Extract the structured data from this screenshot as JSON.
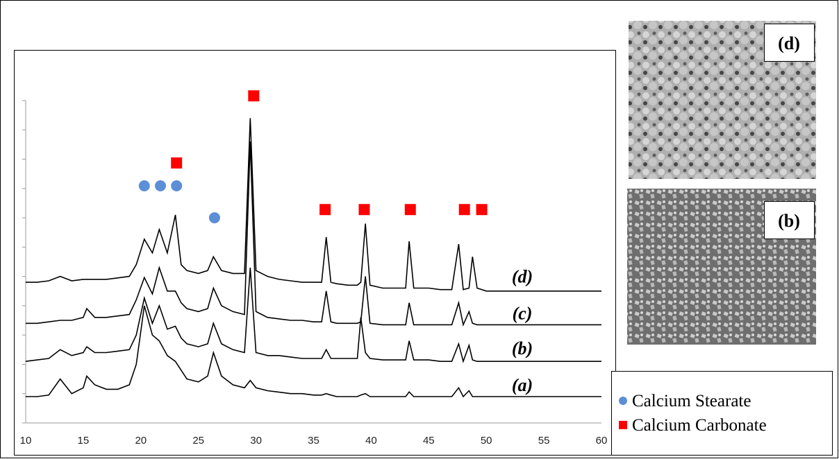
{
  "chart_data": {
    "type": "line",
    "xlim": [
      10,
      60
    ],
    "xticks": [
      10,
      15,
      20,
      25,
      30,
      35,
      40,
      45,
      50,
      55,
      60
    ],
    "ylim": [
      0,
      11
    ],
    "yticks": [
      0,
      1,
      2,
      3,
      4,
      5,
      6,
      7,
      8,
      9,
      10,
      11
    ],
    "x": [
      10,
      11,
      12,
      13,
      14,
      15,
      15.3,
      16,
      17,
      18,
      19,
      19.6,
      20.3,
      21,
      21.6,
      22.3,
      23,
      23.5,
      24,
      25,
      25.8,
      26.3,
      27,
      28,
      29,
      29.5,
      30,
      31,
      32,
      33,
      34,
      35,
      35.7,
      36.1,
      36.5,
      37,
      38,
      38.8,
      39.1,
      39.5,
      39.9,
      41,
      42,
      43,
      43.3,
      43.7,
      45,
      46,
      47,
      47.6,
      48,
      48.5,
      48.8,
      49.2,
      50,
      52,
      54,
      56,
      58,
      60
    ],
    "series": [
      {
        "name": "(a)",
        "color": "#000000",
        "values": [
          0.9,
          0.9,
          0.95,
          1.5,
          1.0,
          1.2,
          1.6,
          1.3,
          1.15,
          1.15,
          1.3,
          2.0,
          4.0,
          3.0,
          2.8,
          2.3,
          2.1,
          1.8,
          1.5,
          1.4,
          1.6,
          2.4,
          1.6,
          1.3,
          1.2,
          1.45,
          1.2,
          1.1,
          1.05,
          1.0,
          1.0,
          0.95,
          0.95,
          1.0,
          0.95,
          0.9,
          0.9,
          0.9,
          0.95,
          1.0,
          0.9,
          0.9,
          0.9,
          0.9,
          1.06,
          0.9,
          0.9,
          0.9,
          0.9,
          1.2,
          0.9,
          1.1,
          0.9,
          0.9,
          0.9,
          0.9,
          0.9,
          0.9,
          0.9,
          0.9
        ]
      },
      {
        "name": "(b)",
        "color": "#000000",
        "values": [
          2.1,
          2.15,
          2.2,
          2.5,
          2.3,
          2.4,
          2.6,
          2.4,
          2.4,
          2.45,
          2.5,
          3.0,
          4.26,
          3.4,
          4.0,
          3.2,
          3.3,
          2.9,
          2.7,
          2.6,
          2.7,
          3.4,
          2.7,
          2.5,
          2.4,
          5.3,
          2.4,
          2.3,
          2.3,
          2.25,
          2.2,
          2.2,
          2.2,
          2.5,
          2.2,
          2.2,
          2.2,
          2.2,
          3.6,
          2.4,
          2.2,
          2.15,
          2.15,
          2.15,
          2.8,
          2.15,
          2.15,
          2.1,
          2.1,
          2.7,
          2.1,
          2.65,
          2.15,
          2.1,
          2.1,
          2.1,
          2.1,
          2.1,
          2.1,
          2.1
        ]
      },
      {
        "name": "(c)",
        "color": "#000000",
        "values": [
          3.4,
          3.4,
          3.45,
          3.5,
          3.5,
          3.6,
          3.9,
          3.6,
          3.6,
          3.65,
          3.7,
          4.2,
          4.96,
          4.4,
          5.3,
          4.5,
          4.5,
          4.1,
          3.9,
          3.8,
          3.9,
          4.6,
          4.0,
          3.8,
          3.7,
          9.6,
          3.8,
          3.6,
          3.55,
          3.5,
          3.5,
          3.45,
          3.45,
          4.5,
          3.45,
          3.4,
          3.4,
          3.4,
          3.45,
          5.0,
          3.4,
          3.35,
          3.35,
          3.35,
          4.1,
          3.35,
          3.35,
          3.35,
          3.35,
          4.1,
          3.35,
          3.8,
          3.4,
          3.35,
          3.35,
          3.35,
          3.35,
          3.35,
          3.35,
          3.35
        ]
      },
      {
        "name": "(d)",
        "color": "#000000",
        "values": [
          4.8,
          4.8,
          4.85,
          5.0,
          4.85,
          4.9,
          4.9,
          4.9,
          4.9,
          4.95,
          5.0,
          5.4,
          6.27,
          5.8,
          6.6,
          5.8,
          7.1,
          5.4,
          5.2,
          5.1,
          5.2,
          5.67,
          5.2,
          5.1,
          5.1,
          10.4,
          5.2,
          5.0,
          4.9,
          4.85,
          4.8,
          4.8,
          4.8,
          6.34,
          4.8,
          4.75,
          4.7,
          4.7,
          4.8,
          6.8,
          4.7,
          4.6,
          4.6,
          4.6,
          6.2,
          4.6,
          4.6,
          4.55,
          4.55,
          6.1,
          4.55,
          4.6,
          5.67,
          4.6,
          4.5,
          4.5,
          4.5,
          4.5,
          4.5,
          4.5
        ]
      }
    ],
    "markers": [
      {
        "name": "Calcium Stearate",
        "shape": "circle",
        "color": "#5b8fd6",
        "x": [
          20.3,
          21.7,
          23.1,
          26.4
        ],
        "y": [
          8.09,
          8.09,
          8.09,
          7.0
        ]
      },
      {
        "name": "Calcium Carbonate",
        "shape": "square",
        "color": "#ff0000",
        "x": [
          23.1,
          29.8,
          36.0,
          39.4,
          43.4,
          48.1,
          49.6
        ],
        "y": [
          8.87,
          11.16,
          7.28,
          7.28,
          7.28,
          7.28,
          7.28
        ]
      }
    ],
    "images": [
      {
        "label": "(d)",
        "shade": "#8a8a8a"
      },
      {
        "label": "(b)",
        "shade": "#7d7d7d"
      }
    ]
  }
}
